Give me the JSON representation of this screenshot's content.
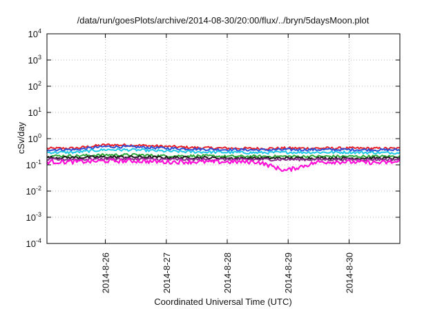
{
  "chart_data": {
    "type": "line",
    "title": "/data/run/goesPlots/archive/2014-08-30/20:00/flux/../bryn/5daysMoon.plot",
    "xlabel": "Coordinated Universal Time (UTC)",
    "ylabel": "cSv/day",
    "y_scale": "log",
    "ylim": [
      0.0001,
      10000
    ],
    "y_ticks": [
      {
        "base": "10",
        "exp": "-4",
        "value": 0.0001
      },
      {
        "base": "10",
        "exp": "-3",
        "value": 0.001
      },
      {
        "base": "10",
        "exp": "-2",
        "value": 0.01
      },
      {
        "base": "10",
        "exp": "-1",
        "value": 0.1
      },
      {
        "base": "10",
        "exp": "0",
        "value": 1
      },
      {
        "base": "10",
        "exp": "1",
        "value": 10
      },
      {
        "base": "10",
        "exp": "2",
        "value": 100
      },
      {
        "base": "10",
        "exp": "3",
        "value": 1000
      },
      {
        "base": "10",
        "exp": "4",
        "value": 10000
      }
    ],
    "xlim": [
      "2014-08-25T01:00",
      "2014-08-30T20:00"
    ],
    "x_ticks": [
      "2014-8-26",
      "2014-8-27",
      "2014-8-28",
      "2014-8-29",
      "2014-8-30"
    ],
    "grid": true,
    "series": [
      {
        "color": "#e8202a",
        "x": [
          "2014-08-25T01:00",
          "2014-08-25T12:00",
          "2014-08-26T00:00",
          "2014-08-26T12:00",
          "2014-08-27T00:00",
          "2014-08-27T12:00",
          "2014-08-28T00:00",
          "2014-08-28T12:00",
          "2014-08-29T00:00",
          "2014-08-29T12:00",
          "2014-08-30T00:00",
          "2014-08-30T12:00",
          "2014-08-30T20:00"
        ],
        "values": [
          0.42,
          0.43,
          0.58,
          0.56,
          0.5,
          0.45,
          0.43,
          0.42,
          0.43,
          0.43,
          0.43,
          0.42,
          0.42
        ]
      },
      {
        "color": "#2a4fd6",
        "x": [
          "2014-08-25T01:00",
          "2014-08-25T12:00",
          "2014-08-26T00:00",
          "2014-08-26T12:00",
          "2014-08-27T00:00",
          "2014-08-27T12:00",
          "2014-08-28T00:00",
          "2014-08-28T12:00",
          "2014-08-29T00:00",
          "2014-08-29T12:00",
          "2014-08-30T00:00",
          "2014-08-30T12:00",
          "2014-08-30T20:00"
        ],
        "values": [
          0.38,
          0.38,
          0.5,
          0.48,
          0.43,
          0.4,
          0.38,
          0.37,
          0.38,
          0.38,
          0.38,
          0.37,
          0.37
        ]
      },
      {
        "color": "#1ec8e6",
        "x": [
          "2014-08-25T01:00",
          "2014-08-25T12:00",
          "2014-08-26T00:00",
          "2014-08-26T12:00",
          "2014-08-27T00:00",
          "2014-08-27T12:00",
          "2014-08-28T00:00",
          "2014-08-28T12:00",
          "2014-08-29T00:00",
          "2014-08-29T12:00",
          "2014-08-30T00:00",
          "2014-08-30T12:00",
          "2014-08-30T20:00"
        ],
        "values": [
          0.3,
          0.3,
          0.38,
          0.37,
          0.33,
          0.31,
          0.3,
          0.29,
          0.3,
          0.3,
          0.3,
          0.29,
          0.29
        ]
      },
      {
        "color": "#2eaa3a",
        "x": [
          "2014-08-25T01:00",
          "2014-08-25T12:00",
          "2014-08-26T00:00",
          "2014-08-26T12:00",
          "2014-08-27T00:00",
          "2014-08-27T12:00",
          "2014-08-28T00:00",
          "2014-08-28T12:00",
          "2014-08-29T00:00",
          "2014-08-29T12:00",
          "2014-08-30T00:00",
          "2014-08-30T12:00",
          "2014-08-30T20:00"
        ],
        "values": [
          0.22,
          0.22,
          0.24,
          0.24,
          0.22,
          0.22,
          0.21,
          0.21,
          0.21,
          0.21,
          0.21,
          0.21,
          0.21
        ]
      },
      {
        "color": "#1a1a1a",
        "x": [
          "2014-08-25T01:00",
          "2014-08-25T12:00",
          "2014-08-26T00:00",
          "2014-08-26T12:00",
          "2014-08-27T00:00",
          "2014-08-27T12:00",
          "2014-08-28T00:00",
          "2014-08-28T12:00",
          "2014-08-29T00:00",
          "2014-08-29T12:00",
          "2014-08-30T00:00",
          "2014-08-30T12:00",
          "2014-08-30T20:00"
        ],
        "values": [
          0.19,
          0.19,
          0.2,
          0.2,
          0.19,
          0.19,
          0.18,
          0.18,
          0.18,
          0.18,
          0.18,
          0.18,
          0.18
        ]
      },
      {
        "color": "#8a2a8a",
        "x": [
          "2014-08-25T01:00",
          "2014-08-25T12:00",
          "2014-08-26T00:00",
          "2014-08-26T12:00",
          "2014-08-27T00:00",
          "2014-08-27T12:00",
          "2014-08-28T00:00",
          "2014-08-28T12:00",
          "2014-08-29T00:00",
          "2014-08-29T12:00",
          "2014-08-30T00:00",
          "2014-08-30T12:00",
          "2014-08-30T20:00"
        ],
        "values": [
          0.16,
          0.16,
          0.17,
          0.17,
          0.16,
          0.16,
          0.16,
          0.16,
          0.16,
          0.16,
          0.16,
          0.16,
          0.16
        ]
      },
      {
        "color": "#ff10d8",
        "x": [
          "2014-08-25T01:00",
          "2014-08-25T12:00",
          "2014-08-26T00:00",
          "2014-08-26T12:00",
          "2014-08-27T00:00",
          "2014-08-27T12:00",
          "2014-08-28T00:00",
          "2014-08-28T12:00",
          "2014-08-28T23:00",
          "2014-08-29T12:00",
          "2014-08-30T00:00",
          "2014-08-30T12:00",
          "2014-08-30T20:00"
        ],
        "values": [
          0.13,
          0.13,
          0.14,
          0.14,
          0.13,
          0.13,
          0.13,
          0.13,
          0.06,
          0.13,
          0.13,
          0.12,
          0.13
        ]
      }
    ]
  }
}
